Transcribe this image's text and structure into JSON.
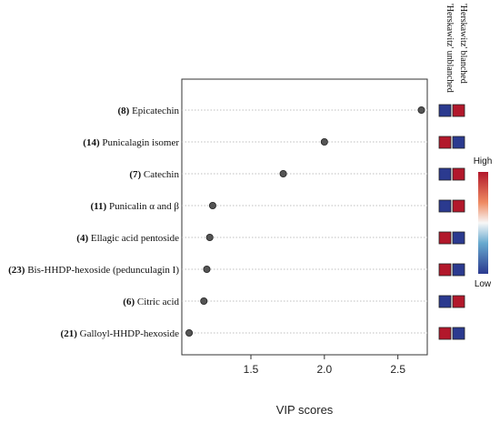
{
  "chart_data": {
    "type": "scatter",
    "title": "",
    "xlabel": "VIP scores",
    "ylabel": "",
    "xlim": [
      1.03,
      2.7
    ],
    "xticks": [
      "1.5",
      "2.0",
      "2.5"
    ],
    "xtick_values": [
      1.5,
      2.0,
      2.5
    ],
    "grid": "dotted horizontal",
    "compounds": [
      {
        "num": "(8)",
        "name": "Epicatechin",
        "vip": 2.66,
        "levels": [
          "Low",
          "High"
        ]
      },
      {
        "num": "(14)",
        "name": "Punicalagin isomer",
        "vip": 2.0,
        "levels": [
          "High",
          "Low"
        ]
      },
      {
        "num": "(7)",
        "name": "Catechin",
        "vip": 1.72,
        "levels": [
          "Low",
          "High"
        ]
      },
      {
        "num": "(11)",
        "name": "Punicalin α and β",
        "vip": 1.24,
        "levels": [
          "Low",
          "High"
        ]
      },
      {
        "num": "(4)",
        "name": "Ellagic  acid pentoside",
        "vip": 1.22,
        "levels": [
          "High",
          "Low"
        ]
      },
      {
        "num": "(23)",
        "name": "Bis-HHDP-hexoside  (pedunculagin I)",
        "vip": 1.2,
        "levels": [
          "High",
          "Low"
        ]
      },
      {
        "num": "(6)",
        "name": "Citric acid",
        "vip": 1.18,
        "levels": [
          "Low",
          "High"
        ]
      },
      {
        "num": "(21)",
        "name": "Galloyl-HHDP-hexoside",
        "vip": 1.08,
        "levels": [
          "High",
          "Low"
        ]
      }
    ],
    "groups": [
      "'Herskawitz' unblanched",
      "'Herskawitz' blanched"
    ],
    "legend": {
      "high_label": "High",
      "low_label": "Low",
      "placement": "right"
    },
    "colors": {
      "high": "#b2182b",
      "low": "#2b3a8f",
      "point": "#555555",
      "grid": "#bfbfbf"
    }
  }
}
